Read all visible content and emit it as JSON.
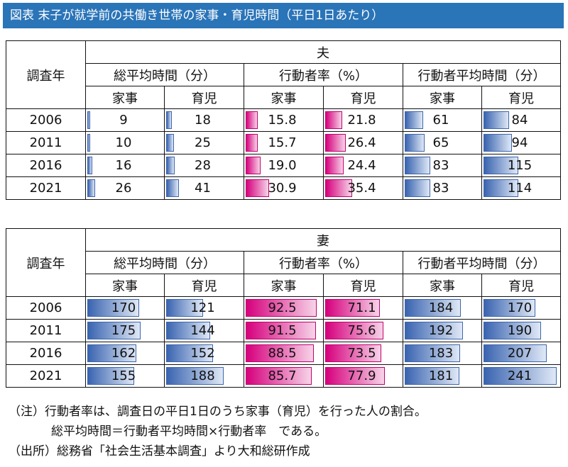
{
  "title": "図表 末子が就学前の共働き世帯の家事・育児時間（平日1日あたり）",
  "headers": {
    "year": "調査年",
    "groups": [
      "総平均時間（分）",
      "行動者率（%）",
      "行動者平均時間（分）"
    ],
    "subs": [
      "家事",
      "育児",
      "家事",
      "育児",
      "家事",
      "育児"
    ]
  },
  "colors": {
    "time_bar": "#3a64b0",
    "rate_bar": "#d6007d",
    "title_bg": "#2a74b8"
  },
  "chart_data": [
    {
      "type": "table",
      "title": "夫",
      "columns": [
        "総平均時間（分）家事",
        "総平均時間（分）育児",
        "行動者率（%）家事",
        "行動者率（%）育児",
        "行動者平均時間（分）家事",
        "行動者平均時間（分）育児"
      ],
      "rows": [
        {
          "year": "2006",
          "values": [
            "9",
            "18",
            "15.8",
            "21.8",
            "61",
            "84"
          ]
        },
        {
          "year": "2011",
          "values": [
            "10",
            "25",
            "15.7",
            "26.4",
            "65",
            "94"
          ]
        },
        {
          "year": "2016",
          "values": [
            "16",
            "28",
            "19.0",
            "24.4",
            "83",
            "115"
          ]
        },
        {
          "year": "2021",
          "values": [
            "26",
            "41",
            "30.9",
            "35.4",
            "83",
            "114"
          ]
        }
      ]
    },
    {
      "type": "table",
      "title": "妻",
      "columns": [
        "総平均時間（分）家事",
        "総平均時間（分）育児",
        "行動者率（%）家事",
        "行動者率（%）育児",
        "行動者平均時間（分）家事",
        "行動者平均時間（分）育児"
      ],
      "rows": [
        {
          "year": "2006",
          "values": [
            "170",
            "121",
            "92.5",
            "71.1",
            "184",
            "170"
          ]
        },
        {
          "year": "2011",
          "values": [
            "175",
            "144",
            "91.5",
            "75.6",
            "192",
            "190"
          ]
        },
        {
          "year": "2016",
          "values": [
            "162",
            "152",
            "88.5",
            "73.5",
            "183",
            "207"
          ]
        },
        {
          "year": "2021",
          "values": [
            "155",
            "188",
            "85.7",
            "77.9",
            "181",
            "241"
          ]
        }
      ]
    }
  ],
  "notes": {
    "line1": "（注）行動者率は、調査日の平日1日のうち家事（育児）を行った人の割合。",
    "line2": "総平均時間＝行動者平均時間×行動者率　である。",
    "line3": "（出所）総務省「社会生活基本調査」より大和総研作成"
  }
}
